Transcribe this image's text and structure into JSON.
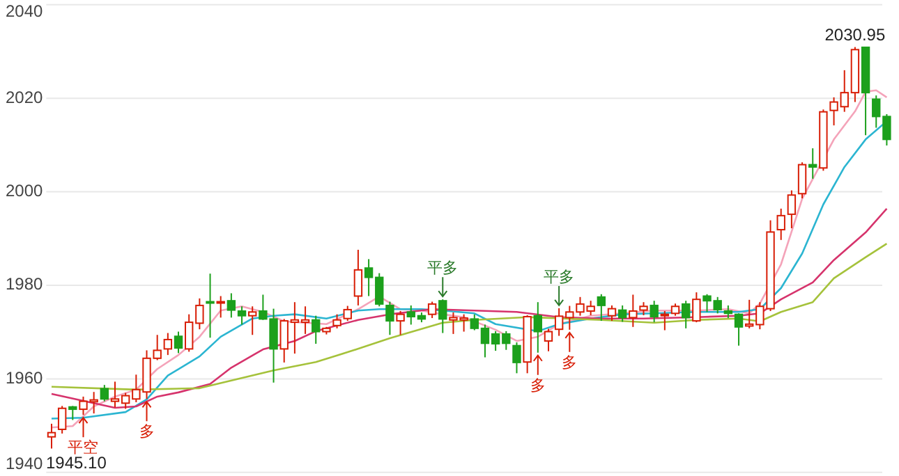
{
  "chart_data": {
    "type": "candlestick",
    "categories": [
      null,
      null,
      null,
      null,
      null,
      null,
      null,
      null,
      null,
      null,
      null,
      null,
      null,
      null,
      null,
      null,
      null,
      null,
      null,
      null,
      null,
      null,
      null,
      null,
      null,
      null,
      null,
      null,
      null,
      null,
      null,
      null,
      null,
      null,
      null,
      null,
      null,
      null,
      null,
      null,
      null,
      null,
      null,
      null,
      null,
      null,
      null,
      null,
      null,
      null,
      null,
      null,
      null,
      null,
      null,
      null,
      null,
      null,
      null,
      null,
      null,
      null,
      null,
      null,
      null,
      null,
      null,
      null,
      null,
      null,
      null,
      null,
      null,
      null,
      null,
      null,
      null,
      null,
      null,
      null
    ],
    "ohlc": [
      [
        1947.6,
        1950.4,
        1945.1,
        1948.5
      ],
      [
        1949.2,
        1954.2,
        1948.3,
        1953.7
      ],
      [
        1954,
        1954.2,
        1951.2,
        1953.5
      ],
      [
        1953.5,
        1956.2,
        1952.3,
        1955.2
      ],
      [
        1955.1,
        1957.2,
        1952.6,
        1955.5
      ],
      [
        1957.9,
        1958.7,
        1955.2,
        1955.7
      ],
      [
        1955.2,
        1959.4,
        1953.9,
        1955.7
      ],
      [
        1954.8,
        1957,
        1953.6,
        1956.4
      ],
      [
        1955.7,
        1960.9,
        1955,
        1957.7
      ],
      [
        1957.2,
        1966.1,
        1955.7,
        1964.4
      ],
      [
        1964.4,
        1969.4,
        1964,
        1966.1
      ],
      [
        1966.4,
        1969.8,
        1965.1,
        1968.4
      ],
      [
        1969.1,
        1970.1,
        1965.5,
        1966.6
      ],
      [
        1966.4,
        1973.8,
        1965.8,
        1972.1
      ],
      [
        1971.9,
        1977.2,
        1970.6,
        1975.7
      ],
      [
        1976.5,
        1982.5,
        1968.8,
        1976.3
      ],
      [
        1976.3,
        1977.7,
        1973.1,
        1976.5
      ],
      [
        1976.7,
        1978.3,
        1973.1,
        1974.7
      ],
      [
        1974.5,
        1975.5,
        1971.6,
        1973.5
      ],
      [
        1973.5,
        1975.5,
        1969.4,
        1974.3
      ],
      [
        1974.5,
        1978,
        1972.6,
        1972.8
      ],
      [
        1972.8,
        1975,
        1959.2,
        1966.4
      ],
      [
        1966.4,
        1972.8,
        1963.5,
        1972.4
      ],
      [
        1972.1,
        1976.4,
        1965.4,
        1972.6
      ],
      [
        1972.1,
        1975.5,
        1969.6,
        1972.6
      ],
      [
        1972.6,
        1973.5,
        1967.5,
        1970.1
      ],
      [
        1970.1,
        1971.1,
        1969.5,
        1970.8
      ],
      [
        1971.4,
        1973.8,
        1970.8,
        1972.6
      ],
      [
        1972.9,
        1975.6,
        1972.4,
        1974.8
      ],
      [
        1977.7,
        1987.6,
        1975.7,
        1983.3
      ],
      [
        1983.7,
        1985.6,
        1977.7,
        1981.7
      ],
      [
        1981.7,
        1982.6,
        1975.5,
        1976
      ],
      [
        1975.7,
        1976.5,
        1969.4,
        1972.4
      ],
      [
        1972.4,
        1974.5,
        1969.4,
        1973.8
      ],
      [
        1974.3,
        1975.7,
        1971.6,
        1973.3
      ],
      [
        1973.5,
        1974.2,
        1972.1,
        1972.8
      ],
      [
        1973.8,
        1976.5,
        1973,
        1976
      ],
      [
        1976.7,
        1977,
        1969.8,
        1972.8
      ],
      [
        1972.6,
        1974.2,
        1969.6,
        1973.1
      ],
      [
        1972.6,
        1973.8,
        1970.1,
        1973
      ],
      [
        1972.8,
        1973.8,
        1970.4,
        1970.8
      ],
      [
        1970.8,
        1971.6,
        1964.6,
        1967.6
      ],
      [
        1969.6,
        1970.2,
        1966,
        1967.5
      ],
      [
        1969.6,
        1970.2,
        1966.2,
        1967.6
      ],
      [
        1967.1,
        1967.8,
        1961.2,
        1963.5
      ],
      [
        1963.6,
        1973.6,
        1961.2,
        1973.3
      ],
      [
        1973.5,
        1976.4,
        1965.6,
        1970.1
      ],
      [
        1968.1,
        1970.7,
        1965.9,
        1970.1
      ],
      [
        1970.6,
        1975.1,
        1969.2,
        1973.4
      ],
      [
        1973.1,
        1975.6,
        1970.5,
        1974.3
      ],
      [
        1974.3,
        1977.5,
        1973.5,
        1976
      ],
      [
        1974.5,
        1976.7,
        1973.6,
        1975.5
      ],
      [
        1977.5,
        1978.1,
        1972.4,
        1975.7
      ],
      [
        1973.5,
        1975.7,
        1972.4,
        1975
      ],
      [
        1974.7,
        1975.7,
        1972.2,
        1973.1
      ],
      [
        1973.1,
        1978,
        1971.1,
        1974.5
      ],
      [
        1974.7,
        1976.4,
        1973.6,
        1975.5
      ],
      [
        1975.7,
        1976.7,
        1972.1,
        1973.3
      ],
      [
        1973.5,
        1974.5,
        1970.4,
        1973.8
      ],
      [
        1974,
        1976.1,
        1973.5,
        1975.5
      ],
      [
        1976,
        1976.7,
        1970.8,
        1973.1
      ],
      [
        1972.4,
        1978.5,
        1972.1,
        1977
      ],
      [
        1977.7,
        1978.1,
        1974.3,
        1976.7
      ],
      [
        1976.7,
        1977.5,
        1974,
        1974.8
      ],
      [
        1974.5,
        1975.7,
        1973,
        1974
      ],
      [
        1973.8,
        1974,
        1967.1,
        1971.1
      ],
      [
        1971.3,
        1976.9,
        1970.8,
        1971.7
      ],
      [
        1971.6,
        1976.4,
        1970.6,
        1975.5
      ],
      [
        1975,
        1993.9,
        1974.5,
        1991.4
      ],
      [
        1991.9,
        1996.4,
        1989.7,
        1994.9
      ],
      [
        1995.2,
        2000.3,
        1992.2,
        1999.3
      ],
      [
        1999.6,
        2006.3,
        1998.6,
        2005.8
      ],
      [
        2005.8,
        2009.3,
        2002.8,
        2005.3
      ],
      [
        2005.1,
        2017.6,
        2004.5,
        2017.1
      ],
      [
        2017.4,
        2020.2,
        2014.2,
        2019.2
      ],
      [
        2018.2,
        2026,
        2017.1,
        2021.2
      ],
      [
        2021.2,
        2030.95,
        2019.2,
        2030.4
      ],
      [
        2030.9,
        2030.9,
        2012.1,
        2021.2
      ],
      [
        2019.8,
        2020.6,
        2013.7,
        2016.1
      ],
      [
        2016.1,
        2016.6,
        2009.9,
        2011.2
      ]
    ],
    "colors": [
      "#d81e06",
      "#d81e06",
      "#1ca01c",
      "#d81e06",
      "#d81e06",
      "#1ca01c",
      "#d81e06",
      "#d81e06",
      "#d81e06",
      "#d81e06",
      "#d81e06",
      "#d81e06",
      "#1ca01c",
      "#d81e06",
      "#d81e06",
      "#1ca01c",
      "#d81e06",
      "#1ca01c",
      "#1ca01c",
      "#d81e06",
      "#1ca01c",
      "#1ca01c",
      "#d81e06",
      "#d81e06",
      "#d81e06",
      "#1ca01c",
      "#d81e06",
      "#d81e06",
      "#d81e06",
      "#d81e06",
      "#1ca01c",
      "#1ca01c",
      "#1ca01c",
      "#d81e06",
      "#1ca01c",
      "#1ca01c",
      "#d81e06",
      "#1ca01c",
      "#d81e06",
      "#d81e06",
      "#1ca01c",
      "#1ca01c",
      "#1ca01c",
      "#1ca01c",
      "#1ca01c",
      "#d81e06",
      "#1ca01c",
      "#d81e06",
      "#d81e06",
      "#d81e06",
      "#d81e06",
      "#d81e06",
      "#1ca01c",
      "#d81e06",
      "#1ca01c",
      "#d81e06",
      "#d81e06",
      "#1ca01c",
      "#d81e06",
      "#d81e06",
      "#1ca01c",
      "#d81e06",
      "#1ca01c",
      "#1ca01c",
      "#1ca01c",
      "#1ca01c",
      "#d81e06",
      "#d81e06",
      "#d81e06",
      "#d81e06",
      "#d81e06",
      "#d81e06",
      "#1ca01c",
      "#d81e06",
      "#d81e06",
      "#d81e06",
      "#d81e06",
      "#1ca01c",
      "#1ca01c",
      "#1ca01c"
    ],
    "series": [
      {
        "type": "line",
        "color": "#f4a3b9",
        "values": [
          1949.6,
          null,
          1949.9,
          null,
          1954.1,
          null,
          1956.2,
          null,
          1957.7,
          null,
          1962.1,
          null,
          1965.1,
          null,
          1969,
          null,
          1974.6,
          null,
          1975.5,
          null,
          1974.3,
          null,
          1972.3,
          null,
          1972,
          null,
          1971.7,
          null,
          null,
          1974.9,
          null,
          1977.6,
          null,
          1974.9,
          null,
          1974.6,
          null,
          1973.8,
          null,
          1973.2,
          null,
          null,
          1970.5,
          null,
          1968.1,
          null,
          1969,
          null,
          1971.7,
          null,
          null,
          1973.5,
          null,
          null,
          1974,
          null,
          null,
          1974.6,
          null,
          null,
          null,
          1974.6,
          null,
          null,
          1974.9,
          null,
          1974,
          1976.1,
          null,
          1984.5,
          null,
          1998.5,
          null,
          null,
          2011.2,
          null,
          2017.2,
          2021.4,
          2021.7,
          2020.2
        ]
      },
      {
        "type": "line",
        "color": "#2bb5d1",
        "values": [
          1951.5,
          null,
          null,
          1951.7,
          null,
          null,
          null,
          1952.9,
          null,
          1955.6,
          null,
          1960.7,
          null,
          null,
          1964.8,
          null,
          1969,
          null,
          null,
          1972.9,
          null,
          1973.5,
          null,
          1973.8,
          null,
          null,
          1972.9,
          null,
          null,
          1974.6,
          null,
          1974.9,
          null,
          null,
          null,
          1974.9,
          null,
          1974.6,
          null,
          null,
          1974,
          null,
          1971.7,
          null,
          null,
          null,
          1970.2,
          null,
          1971.7,
          null,
          null,
          1972.9,
          null,
          null,
          1973.8,
          null,
          null,
          1974,
          null,
          null,
          null,
          1974.3,
          null,
          null,
          null,
          1974.3,
          null,
          1974.9,
          null,
          1979.4,
          null,
          1986.8,
          null,
          1997.3,
          null,
          2005.3,
          null,
          2011.2,
          null,
          2015.1
        ]
      },
      {
        "type": "line",
        "color": "#d6336c",
        "values": [
          1956.8,
          null,
          null,
          1955.3,
          null,
          null,
          1953.8,
          null,
          1954.1,
          null,
          1956.2,
          null,
          1957.1,
          null,
          null,
          1958.9,
          null,
          1962.4,
          null,
          null,
          1966.3,
          null,
          null,
          1968.1,
          null,
          1970.2,
          null,
          null,
          null,
          1972.6,
          null,
          null,
          1973.8,
          null,
          null,
          null,
          1974.9,
          null,
          null,
          null,
          1974.6,
          null,
          null,
          null,
          1974.3,
          null,
          null,
          null,
          1973.2,
          null,
          null,
          null,
          1972.9,
          null,
          null,
          null,
          1972.9,
          null,
          null,
          null,
          null,
          1973.2,
          null,
          null,
          null,
          1973.5,
          null,
          1974,
          null,
          1977,
          null,
          null,
          1980.6,
          null,
          1985.4,
          null,
          null,
          1991.3,
          null,
          1996.4
        ]
      },
      {
        "type": "line",
        "color": "#a5c23b",
        "values": [
          1958.3,
          null,
          null,
          null,
          null,
          null,
          null,
          null,
          1957.7,
          null,
          null,
          null,
          null,
          null,
          1958,
          null,
          null,
          null,
          null,
          null,
          null,
          1961.8,
          null,
          null,
          null,
          1963.6,
          null,
          null,
          1965.7,
          null,
          null,
          null,
          1968.7,
          null,
          null,
          null,
          null,
          1972,
          null,
          null,
          1972.6,
          null,
          null,
          null,
          null,
          1973.2,
          null,
          null,
          null,
          null,
          null,
          null,
          1972.6,
          null,
          null,
          null,
          null,
          1972,
          null,
          null,
          null,
          1972.6,
          null,
          null,
          null,
          1972.9,
          null,
          1972.3,
          null,
          1974.3,
          null,
          null,
          1976.4,
          null,
          1981.5,
          null,
          null,
          1986,
          null,
          1988.9
        ]
      }
    ],
    "ylim": [
      1940,
      2040
    ],
    "yticks": [
      1940,
      1960,
      1980,
      2000,
      2020,
      2040
    ],
    "grid": "y",
    "annotations": [
      "1945.10",
      {
        "text": "平空",
        "y": 1952.3
      },
      {
        "text": "多",
        "y": 1955.7
      },
      {
        "text": "平多",
        "y": 1977
      },
      {
        "text": "多",
        "y": 1965.6
      },
      {
        "text": "平多",
        "y": 1975.1
      },
      {
        "text": "多",
        "y": 1970.5
      },
      {
        "text": "2030.95",
        "y": 2030.95
      }
    ]
  }
}
